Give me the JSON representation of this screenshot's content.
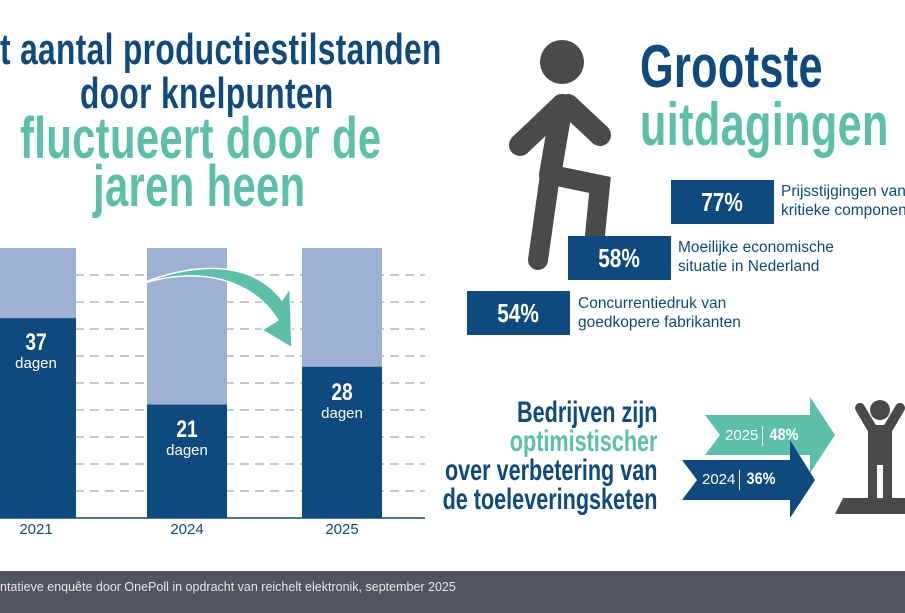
{
  "title_left": {
    "line1": "t aantal productiestilstanden",
    "line2": "door knelpunten",
    "line3": "fluctueert door de",
    "line4": "jaren heen"
  },
  "title_right": {
    "line1": "Grootste",
    "line2": "uitdagingen"
  },
  "challenges": [
    {
      "pct": "77%",
      "label1": "Prijsstijgingen van",
      "label2": "kritieke componenten"
    },
    {
      "pct": "58%",
      "label1": "Moeilijke economische",
      "label2": "situatie in Nederland"
    },
    {
      "pct": "54%",
      "label1": "Concurrentiedruk van",
      "label2": "goedkopere fabrikanten"
    }
  ],
  "optimism": {
    "line1": "Bedrijven zijn",
    "line2": "optimistischer",
    "line3": "over verbetering van",
    "line4": "de toeleveringsketen",
    "y2025": "2025",
    "v2025": "48%",
    "y2024": "2024",
    "v2024": "36%"
  },
  "footer": "ntatieve enquête door OnePoll in opdracht van reichelt elektronik, september 2025",
  "colors": {
    "navy": "#0e4a7e",
    "teal": "#5bbfaa",
    "light_bar": "#9eb1d2",
    "figure": "#4a4a4c",
    "footer": "#52555e"
  },
  "chart_data": {
    "type": "bar",
    "categories": [
      "2021",
      "2024",
      "2025"
    ],
    "values": [
      37,
      21,
      28
    ],
    "unit": "dagen",
    "value_labels": [
      "37",
      "21",
      "28"
    ],
    "ylim": [
      0,
      50
    ],
    "grid": true
  }
}
